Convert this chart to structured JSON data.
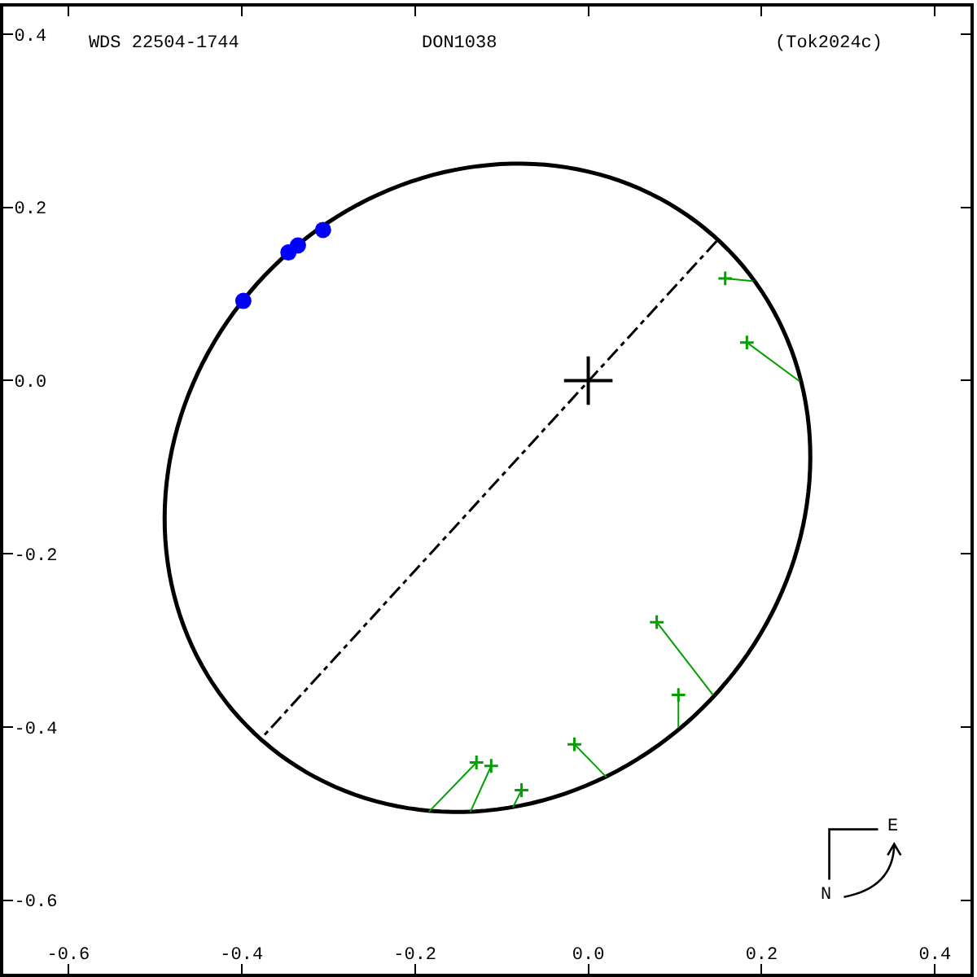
{
  "chart_data": {
    "type": "scatter",
    "title": "WDS 22504-1744",
    "subtitle": "DON1038",
    "annotations": [
      "(Tok2024c)",
      "E",
      "N"
    ],
    "xlim": [
      -0.675,
      0.441
    ],
    "ylim": [
      -0.685,
      0.432
    ],
    "xticks": [
      -0.6,
      -0.4,
      -0.2,
      {
        "value": 0,
        "label": "0.0"
      },
      0.2,
      0.4
    ],
    "yticks": [
      -0.6,
      -0.4,
      -0.2,
      {
        "value": 0,
        "label": "0.0"
      },
      0.2,
      0.4
    ],
    "series": [
      {
        "type": "line",
        "color": "#000000",
        "line_style": "dashdot",
        "marker": "none",
        "x": [
          0.148,
          -0.377
        ],
        "values": [
          0.161,
          -0.413
        ]
      },
      {
        "type": "line",
        "color": "#00a000",
        "line_style": "solid",
        "marker": "none",
        "x": [
          0.158,
          0.19
        ],
        "values": [
          0.118,
          0.115
        ]
      },
      {
        "type": "line",
        "color": "#00a000",
        "line_style": "solid",
        "marker": "none",
        "x": [
          0.183,
          0.244
        ],
        "values": [
          0.044,
          -0.001
        ]
      },
      {
        "type": "line",
        "color": "#00a000",
        "line_style": "solid",
        "marker": "none",
        "x": [
          -0.129,
          -0.184
        ],
        "values": [
          -0.441,
          -0.498
        ]
      },
      {
        "type": "line",
        "color": "#00a000",
        "line_style": "solid",
        "marker": "none",
        "x": [
          -0.112,
          -0.136
        ],
        "values": [
          -0.445,
          -0.498
        ]
      },
      {
        "type": "line",
        "color": "#00a000",
        "line_style": "solid",
        "marker": "none",
        "x": [
          -0.077,
          -0.087
        ],
        "values": [
          -0.473,
          -0.493
        ]
      },
      {
        "type": "line",
        "color": "#00a000",
        "line_style": "solid",
        "marker": "none",
        "x": [
          -0.016,
          0.021
        ],
        "values": [
          -0.42,
          -0.458
        ]
      },
      {
        "type": "line",
        "color": "#00a000",
        "line_style": "solid",
        "marker": "none",
        "x": [
          0.079,
          0.144
        ],
        "values": [
          -0.279,
          -0.363
        ]
      },
      {
        "type": "line",
        "color": "#00a000",
        "line_style": "solid",
        "marker": "none",
        "x": [
          0.104,
          0.104
        ],
        "values": [
          -0.363,
          -0.401
        ]
      },
      {
        "color": "#00a000",
        "marker": "cross",
        "x": [
          0.158,
          0.183,
          -0.129,
          -0.112,
          -0.077,
          -0.016,
          0.079,
          0.104
        ],
        "values": [
          0.118,
          0.044,
          -0.441,
          -0.445,
          -0.473,
          -0.42,
          -0.279,
          -0.363
        ]
      },
      {
        "color": "#0000ff",
        "marker": "circle",
        "x": [
          -0.398,
          -0.346,
          -0.335,
          -0.306
        ],
        "values": [
          0.092,
          0.148,
          0.156,
          0.174
        ]
      }
    ]
  }
}
